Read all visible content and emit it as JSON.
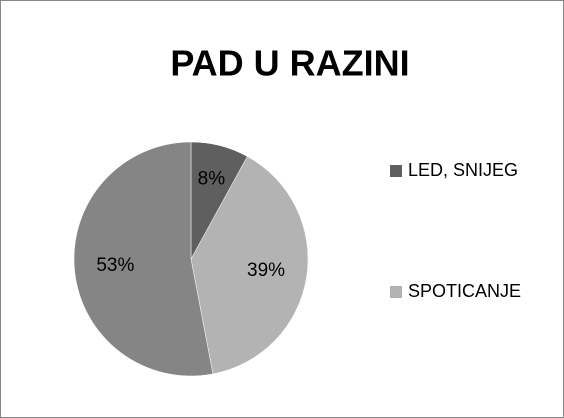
{
  "chart_data": {
    "type": "pie",
    "title": "PAD U RAZINI",
    "categories": [
      "LED, SNIJEG",
      "SPOTICANJE",
      null
    ],
    "values": [
      8,
      39,
      53
    ],
    "value_labels": [
      "8%",
      "39%",
      "53%"
    ],
    "colors": [
      "#5f5f5f",
      "#b3b3b3",
      "#858585"
    ],
    "legend": "right"
  }
}
